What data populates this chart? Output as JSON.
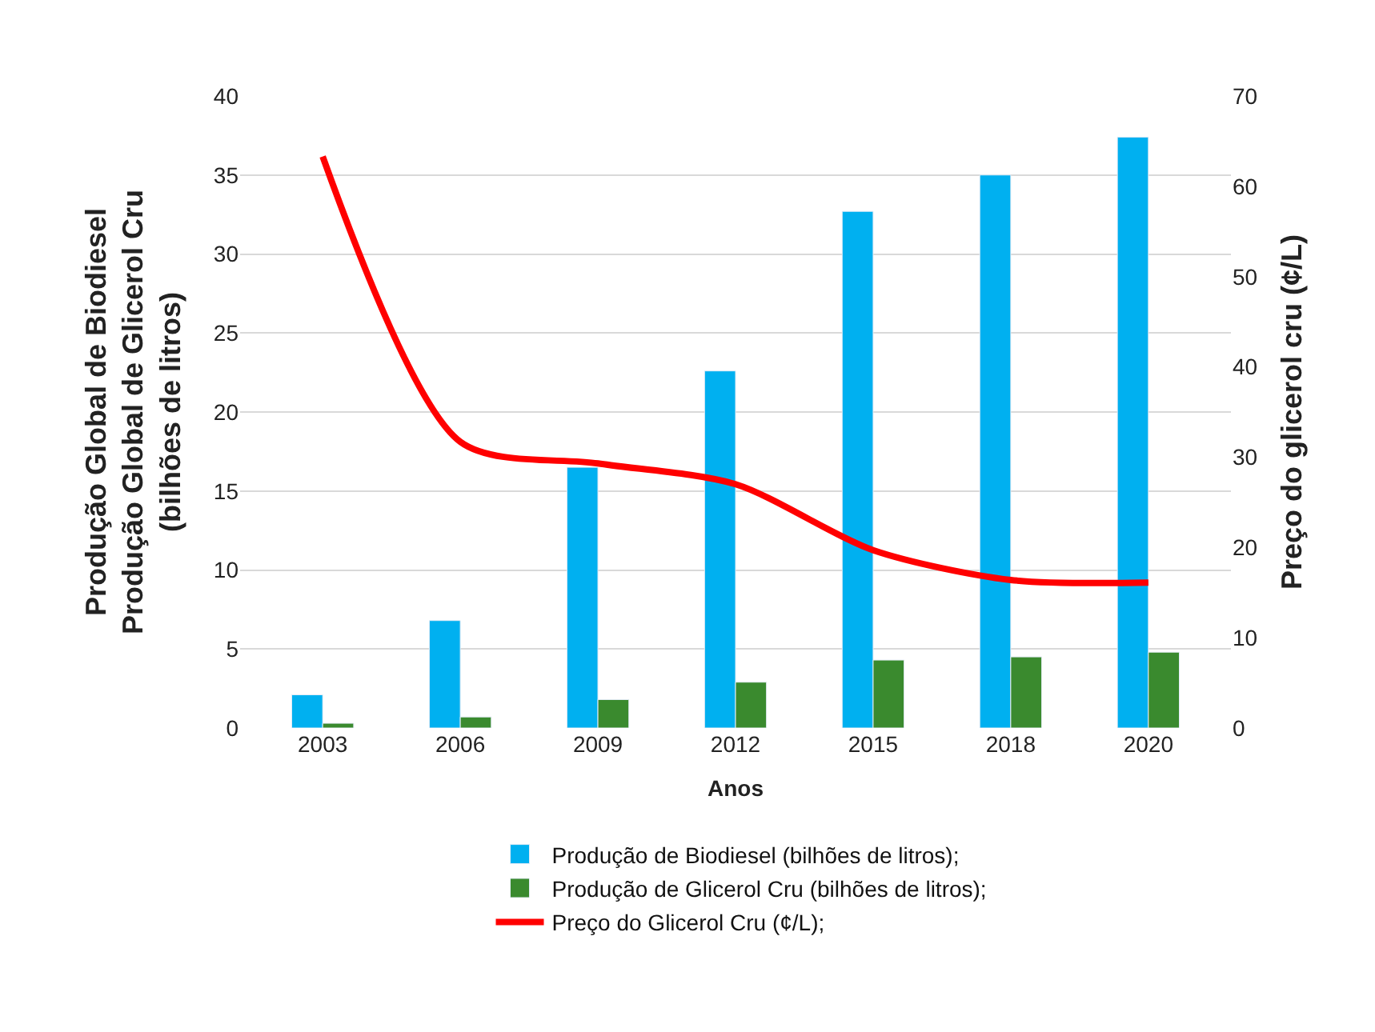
{
  "chart_data": {
    "type": "bar",
    "xlabel": "Anos",
    "ylabel": "Produção Global de Biodiesel\nProdução Global de Glicerol Cru\n(bilhões de litros)",
    "y2label": "Preço do glicerol cru (¢/L)",
    "categories": [
      "2003",
      "2006",
      "2009",
      "2012",
      "2015",
      "2018",
      "2020"
    ],
    "series": [
      {
        "name": "Produção de Biodiesel (bilhões de litros);",
        "color": "#00b0f0",
        "values": [
          2.1,
          6.8,
          16.5,
          22.6,
          32.7,
          35.0,
          37.4
        ]
      },
      {
        "name": "Produção de Glicerol Cru (bilhões de litros);",
        "color": "#3a8a2e",
        "values": [
          0.3,
          0.7,
          1.8,
          2.9,
          4.3,
          4.5,
          4.8
        ]
      },
      {
        "name": "Preço do Glicerol Cru (¢/L);",
        "type": "line",
        "axis": "y2",
        "color": "#ff0000",
        "values": [
          63.3,
          31.7,
          29.3,
          27.0,
          19.7,
          16.4,
          16.1
        ]
      }
    ],
    "ylim": [
      0,
      40
    ],
    "yticks": [
      0,
      5,
      10,
      15,
      20,
      25,
      30,
      35,
      40
    ],
    "y2lim": [
      0,
      70
    ],
    "y2ticks": [
      0,
      10,
      20,
      30,
      40,
      50,
      60,
      70
    ],
    "grid": "y",
    "legend": "bottom",
    "marker": "none",
    "line_style": "solid"
  }
}
